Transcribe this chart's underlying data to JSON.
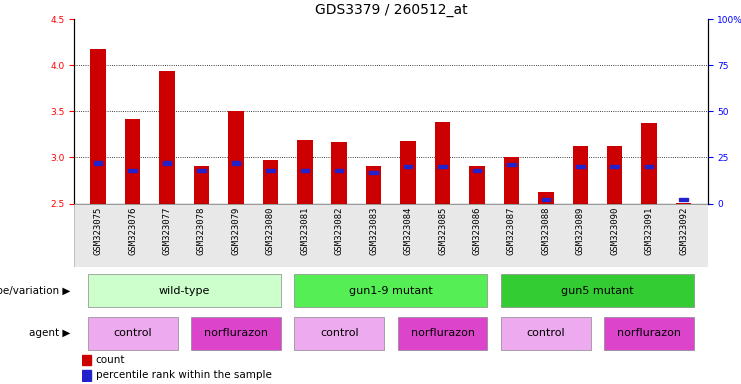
{
  "title": "GDS3379 / 260512_at",
  "samples": [
    "GSM323075",
    "GSM323076",
    "GSM323077",
    "GSM323078",
    "GSM323079",
    "GSM323080",
    "GSM323081",
    "GSM323082",
    "GSM323083",
    "GSM323084",
    "GSM323085",
    "GSM323086",
    "GSM323087",
    "GSM323088",
    "GSM323089",
    "GSM323090",
    "GSM323091",
    "GSM323092"
  ],
  "counts": [
    4.18,
    3.42,
    3.94,
    2.91,
    3.5,
    2.97,
    3.19,
    3.17,
    2.91,
    3.18,
    3.38,
    2.91,
    3.01,
    2.62,
    3.12,
    3.12,
    3.37,
    2.51
  ],
  "percentile_ranks": [
    22,
    18,
    22,
    18,
    22,
    18,
    18,
    18,
    17,
    20,
    20,
    18,
    21,
    2,
    20,
    20,
    20,
    2
  ],
  "ylim_left": [
    2.5,
    4.5
  ],
  "ylim_right": [
    0,
    100
  ],
  "yticks_left": [
    2.5,
    3.0,
    3.5,
    4.0,
    4.5
  ],
  "yticks_right": [
    0,
    25,
    50,
    75,
    100
  ],
  "bar_color": "#cc0000",
  "blue_color": "#2222cc",
  "bar_width": 0.45,
  "genotype_groups": [
    {
      "label": "wild-type",
      "start": 0,
      "end": 5,
      "color": "#ccffcc"
    },
    {
      "label": "gun1-9 mutant",
      "start": 6,
      "end": 11,
      "color": "#55ee55"
    },
    {
      "label": "gun5 mutant",
      "start": 12,
      "end": 17,
      "color": "#33cc33"
    }
  ],
  "agent_groups": [
    {
      "label": "control",
      "start": 0,
      "end": 2,
      "color": "#eeaaee"
    },
    {
      "label": "norflurazon",
      "start": 3,
      "end": 5,
      "color": "#dd44cc"
    },
    {
      "label": "control",
      "start": 6,
      "end": 8,
      "color": "#eeaaee"
    },
    {
      "label": "norflurazon",
      "start": 9,
      "end": 11,
      "color": "#dd44cc"
    },
    {
      "label": "control",
      "start": 12,
      "end": 14,
      "color": "#eeaaee"
    },
    {
      "label": "norflurazon",
      "start": 15,
      "end": 17,
      "color": "#dd44cc"
    }
  ],
  "genotype_label": "genotype/variation",
  "agent_label": "agent",
  "legend_count": "count",
  "legend_percentile": "percentile rank within the sample",
  "title_fontsize": 10,
  "tick_fontsize": 6.5,
  "label_fontsize": 7.5,
  "group_fontsize": 8
}
